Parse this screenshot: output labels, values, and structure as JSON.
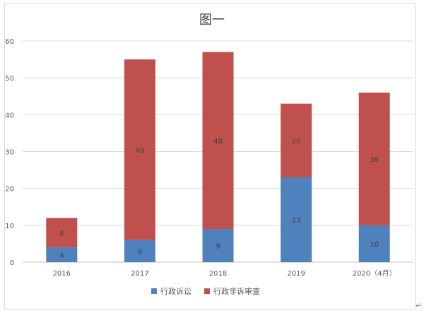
{
  "chart_data": {
    "type": "bar",
    "stacked": true,
    "title": "图一",
    "categories": [
      "2016",
      "2017",
      "2018",
      "2019",
      "2020（4月）"
    ],
    "series": [
      {
        "name": "行政诉讼",
        "color": "#4f81bd",
        "values": [
          4,
          6,
          9,
          23,
          10
        ]
      },
      {
        "name": "行政非诉审查",
        "color": "#c0504d",
        "values": [
          8,
          49,
          48,
          20,
          36
        ]
      }
    ],
    "xlabel": "",
    "ylabel": "",
    "ylim": [
      0,
      60
    ],
    "yticks": [
      0,
      10,
      20,
      30,
      40,
      50,
      60
    ],
    "grid": true,
    "legend_position": "bottom"
  },
  "page": {
    "return_mark": "↵"
  }
}
